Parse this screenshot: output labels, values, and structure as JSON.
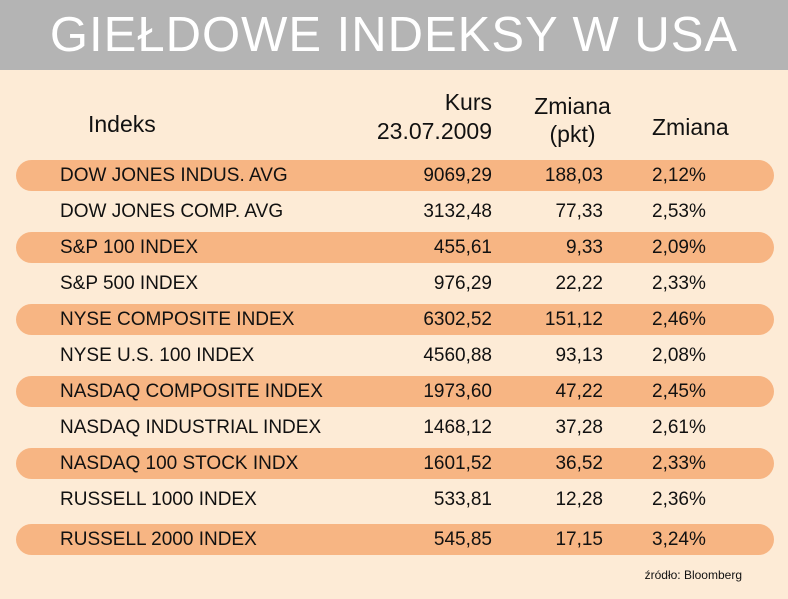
{
  "title": "GIEŁDOWE INDEKSY W USA",
  "headers": {
    "index": "Indeks",
    "kurs_line1": "Kurs",
    "kurs_line2": "23.07.2009",
    "change_pts_line1": "Zmiana",
    "change_pts_line2": "(pkt)",
    "change_pct": "Zmiana"
  },
  "source": "źródło: Bloomberg",
  "colors": {
    "title_bar": "#b4b4b4",
    "row_highlight": "#f7b583",
    "background": "#fdebd6"
  },
  "chart_data": {
    "type": "table",
    "title": "GIEŁDOWE INDEKSY W USA",
    "columns": [
      "Indeks",
      "Kurs 23.07.2009",
      "Zmiana (pkt)",
      "Zmiana"
    ],
    "rows": [
      {
        "name": "DOW JONES INDUS. AVG",
        "kurs": "9069,29",
        "pkt": "188,03",
        "pct": "2,12%"
      },
      {
        "name": "DOW JONES COMP. AVG",
        "kurs": "3132,48",
        "pkt": "77,33",
        "pct": "2,53%"
      },
      {
        "name": "S&P 100 INDEX",
        "kurs": "455,61",
        "pkt": "9,33",
        "pct": "2,09%"
      },
      {
        "name": "S&P 500 INDEX",
        "kurs": "976,29",
        "pkt": "22,22",
        "pct": "2,33%"
      },
      {
        "name": "NYSE COMPOSITE INDEX",
        "kurs": "6302,52",
        "pkt": "151,12",
        "pct": "2,46%"
      },
      {
        "name": "NYSE U.S. 100 INDEX",
        "kurs": "4560,88",
        "pkt": "93,13",
        "pct": "2,08%"
      },
      {
        "name": "NASDAQ COMPOSITE INDEX",
        "kurs": "1973,60",
        "pkt": "47,22",
        "pct": "2,45%"
      },
      {
        "name": "NASDAQ INDUSTRIAL INDEX",
        "kurs": "1468,12",
        "pkt": "37,28",
        "pct": "2,61%"
      },
      {
        "name": "NASDAQ 100 STOCK INDX",
        "kurs": "1601,52",
        "pkt": "36,52",
        "pct": "2,33%"
      },
      {
        "name": "RUSSELL 1000 INDEX",
        "kurs": "533,81",
        "pkt": "12,28",
        "pct": "2,36%"
      },
      {
        "name": "RUSSELL 2000 INDEX",
        "kurs": "545,85",
        "pkt": "17,15",
        "pct": "3,24%"
      }
    ]
  }
}
